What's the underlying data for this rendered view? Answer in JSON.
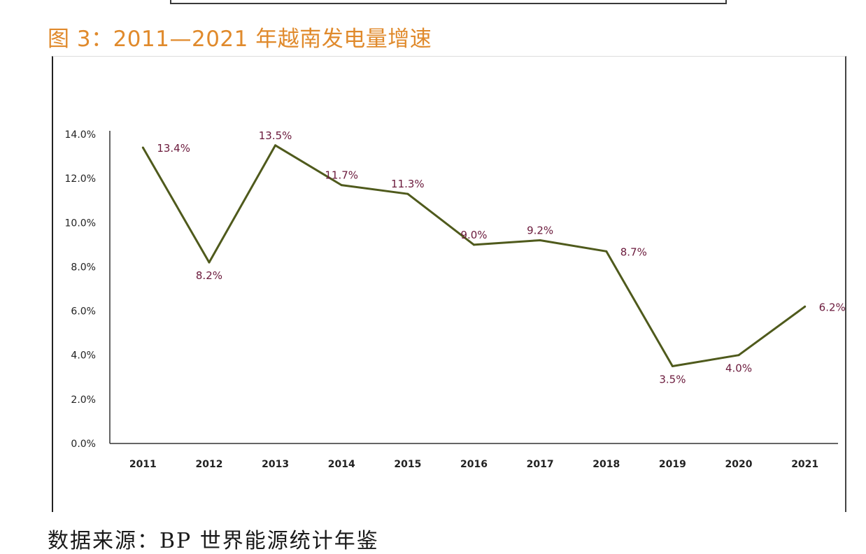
{
  "figure": {
    "title": "图 3：2011—2021 年越南发电量增速",
    "source": "数据来源：BP 世界能源统计年鉴"
  },
  "chart_data": {
    "type": "line",
    "title": "图 3：2011—2021 年越南发电量增速",
    "xlabel": "",
    "ylabel": "",
    "categories": [
      "2011",
      "2012",
      "2013",
      "2014",
      "2015",
      "2016",
      "2017",
      "2018",
      "2019",
      "2020",
      "2021"
    ],
    "series": [
      {
        "name": "越南发电量增速",
        "values": [
          13.4,
          8.2,
          13.5,
          11.7,
          11.3,
          9.0,
          9.2,
          8.7,
          3.5,
          4.0,
          6.2
        ],
        "labels": [
          "13.4%",
          "8.2%",
          "13.5%",
          "11.7%",
          "11.3%",
          "9.0%",
          "9.2%",
          "8.7%",
          "3.5%",
          "4.0%",
          "6.2%"
        ],
        "color": "#4f5a1c"
      }
    ],
    "ylim": [
      0,
      14
    ],
    "yticks": [
      0,
      2,
      4,
      6,
      8,
      10,
      12,
      14
    ],
    "ytick_labels": [
      "0.0%",
      "2.0%",
      "4.0%",
      "6.0%",
      "8.0%",
      "10.0%",
      "12.0%",
      "14.0%"
    ],
    "label_placement": [
      "right",
      "below",
      "above",
      "above",
      "above",
      "above",
      "above",
      "right",
      "below",
      "below",
      "right"
    ],
    "grid": false,
    "label_color": "#6b1a3c",
    "tick_color": "#222222"
  }
}
